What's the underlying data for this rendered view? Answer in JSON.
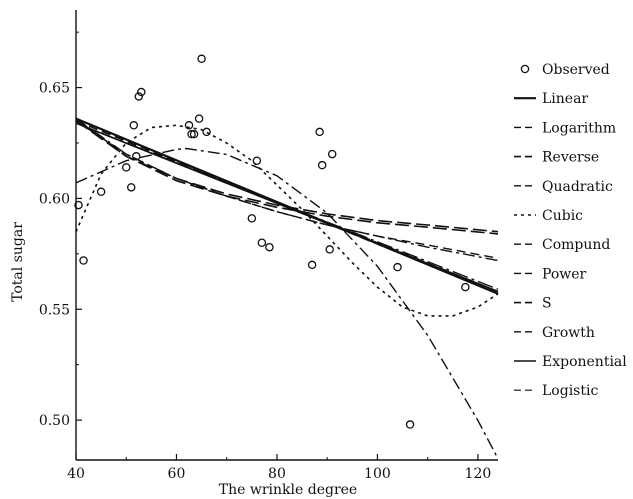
{
  "chart_data": {
    "type": "scatter",
    "xlabel": "The wrinkle degree",
    "ylabel": "Total sugar",
    "xlim": [
      40,
      124
    ],
    "ylim": [
      0.482,
      0.685
    ],
    "xticks": [
      "40",
      "60",
      "80",
      "100",
      "120"
    ],
    "yticks": [
      "0.50",
      "0.55",
      "0.60",
      "0.65"
    ],
    "grid": false,
    "legend_position": "right",
    "observed": {
      "name": "Observed",
      "x": [
        40.5,
        41.5,
        45,
        50,
        51,
        51.5,
        52,
        52.5,
        53,
        62.5,
        63,
        63.5,
        64.5,
        65,
        66,
        75,
        76,
        77,
        78.5,
        87,
        88.5,
        89,
        90.5,
        91,
        104,
        106.5,
        117.5
      ],
      "y": [
        0.597,
        0.572,
        0.603,
        0.614,
        0.605,
        0.633,
        0.619,
        0.646,
        0.648,
        0.633,
        0.629,
        0.629,
        0.636,
        0.663,
        0.63,
        0.591,
        0.617,
        0.58,
        0.578,
        0.57,
        0.63,
        0.615,
        0.577,
        0.62,
        0.569,
        0.498,
        0.56
      ]
    },
    "series": [
      {
        "name": "Linear",
        "style": "solid",
        "width": 2.2,
        "x": [
          40,
          124
        ],
        "y": [
          0.636,
          0.557
        ]
      },
      {
        "name": "Logarithm",
        "style": "dashdot",
        "width": 1.4,
        "x": [
          40,
          50,
          60,
          70,
          80,
          90,
          100,
          110,
          124
        ],
        "y": [
          0.636,
          0.62,
          0.609,
          0.601,
          0.594,
          0.588,
          0.583,
          0.578,
          0.572
        ]
      },
      {
        "name": "Reverse",
        "style": "longdash",
        "width": 1.6,
        "x": [
          40,
          50,
          60,
          70,
          80,
          90,
          100,
          110,
          124
        ],
        "y": [
          0.636,
          0.619,
          0.608,
          0.601,
          0.596,
          0.592,
          0.589,
          0.587,
          0.584
        ]
      },
      {
        "name": "Quadratic",
        "style": "dashdot",
        "width": 1.4,
        "x": [
          40,
          50,
          60,
          62,
          70,
          80,
          90,
          100,
          110,
          120,
          124
        ],
        "y": [
          0.607,
          0.617,
          0.6221,
          0.6225,
          0.6198,
          0.6102,
          0.5934,
          0.5694,
          0.5382,
          0.4998,
          0.4826
        ]
      },
      {
        "name": "Cubic",
        "style": "dotted",
        "width": 1.6,
        "x": [
          40,
          45,
          50,
          55,
          60,
          65,
          70,
          75,
          80,
          85,
          90,
          95,
          100,
          105,
          110,
          115,
          120,
          124
        ],
        "y": [
          0.585,
          0.611,
          0.625,
          0.632,
          0.633,
          0.631,
          0.625,
          0.617,
          0.606,
          0.595,
          0.583,
          0.571,
          0.56,
          0.551,
          0.547,
          0.547,
          0.551,
          0.557
        ]
      },
      {
        "name": "Compund",
        "style": "dashdot2",
        "width": 1.4,
        "x": [
          40,
          124
        ],
        "y": [
          0.634,
          0.559
        ]
      },
      {
        "name": "Power",
        "style": "dashed",
        "width": 1.4,
        "x": [
          40,
          50,
          60,
          70,
          80,
          90,
          100,
          110,
          124
        ],
        "y": [
          0.635,
          0.62,
          0.609,
          0.601,
          0.594,
          0.588,
          0.583,
          0.579,
          0.573
        ]
      },
      {
        "name": "S",
        "style": "longdash",
        "width": 1.6,
        "x": [
          40,
          50,
          60,
          70,
          80,
          90,
          100,
          110,
          124
        ],
        "y": [
          0.635,
          0.619,
          0.609,
          0.602,
          0.597,
          0.593,
          0.59,
          0.588,
          0.585
        ]
      },
      {
        "name": "Growth",
        "style": "dashed",
        "width": 1.4,
        "x": [
          40,
          124
        ],
        "y": [
          0.635,
          0.558
        ]
      },
      {
        "name": "Exponential",
        "style": "solid",
        "width": 1.6,
        "x": [
          40,
          124
        ],
        "y": [
          0.634,
          0.558
        ]
      },
      {
        "name": "Logistic",
        "style": "dashed",
        "width": 1.2,
        "x": [
          40,
          124
        ],
        "y": [
          0.635,
          0.557
        ]
      }
    ],
    "legend": [
      "Observed",
      "Linear",
      "Logarithm",
      "Reverse",
      "Quadratic",
      "Cubic",
      "Compund",
      "Power",
      "S",
      "Growth",
      "Exponential",
      "Logistic"
    ]
  }
}
